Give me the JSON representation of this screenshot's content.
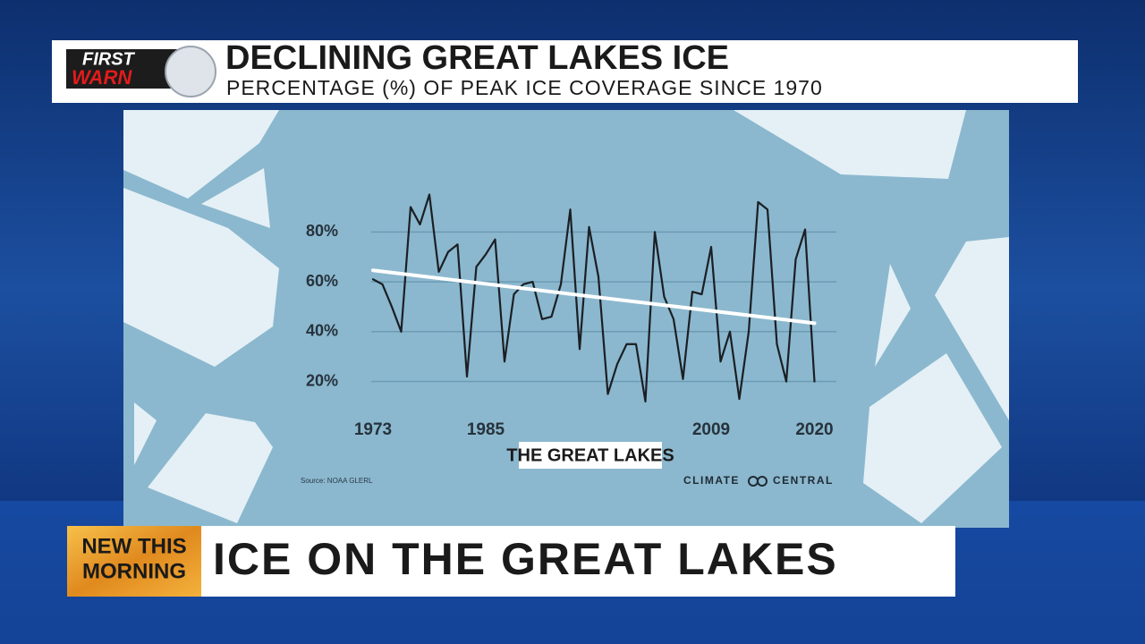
{
  "header": {
    "logo_top": "FIRST",
    "logo_bottom": "WARN"
  },
  "chart_data": {
    "type": "line",
    "title": "DECLINING GREAT LAKES ICE",
    "subtitle": "PERCENTAGE (%) OF PEAK ICE COVERAGE SINCE 1970",
    "x": [
      1973,
      1974,
      1975,
      1976,
      1977,
      1978,
      1979,
      1980,
      1981,
      1982,
      1983,
      1984,
      1985,
      1986,
      1987,
      1988,
      1989,
      1990,
      1991,
      1992,
      1993,
      1994,
      1995,
      1996,
      1997,
      1998,
      1999,
      2000,
      2001,
      2002,
      2003,
      2004,
      2005,
      2006,
      2007,
      2008,
      2009,
      2010,
      2011,
      2012,
      2013,
      2014,
      2015,
      2016,
      2017,
      2018,
      2019,
      2020
    ],
    "series": [
      {
        "color": "#1b1f24",
        "values": [
          61,
          59,
          50,
          40,
          90,
          83,
          95,
          64,
          72,
          75,
          22,
          66,
          71,
          77,
          28,
          55,
          59,
          60,
          45,
          46,
          59,
          89,
          33,
          82,
          62,
          15,
          27,
          35,
          35,
          12,
          80,
          54,
          45,
          21,
          56,
          55,
          74,
          28,
          40,
          13,
          40,
          92,
          89,
          35,
          20,
          69,
          81,
          20
        ]
      }
    ],
    "trend": {
      "x": [
        1973,
        2020
      ],
      "values": [
        64.6,
        43.4
      ],
      "color": "#ffffff"
    },
    "xlim": [
      1972,
      2021
    ],
    "xticks": [
      1973,
      1985,
      2009,
      2020
    ],
    "ylim": [
      8,
      102
    ],
    "yticks": [
      {
        "value": 20,
        "label": "20%"
      },
      {
        "value": 40,
        "label": "40%"
      },
      {
        "value": 60,
        "label": "60%"
      },
      {
        "value": 80,
        "label": "80%"
      }
    ],
    "grid": true,
    "label": "THE GREAT LAKES",
    "source": "Source: NOAA GLERL",
    "credit": [
      "CLIMATE",
      "CENTRAL"
    ]
  },
  "lower_third": {
    "tag": [
      "NEW THIS",
      "MORNING"
    ],
    "headline": "ICE ON THE GREAT LAKES"
  }
}
